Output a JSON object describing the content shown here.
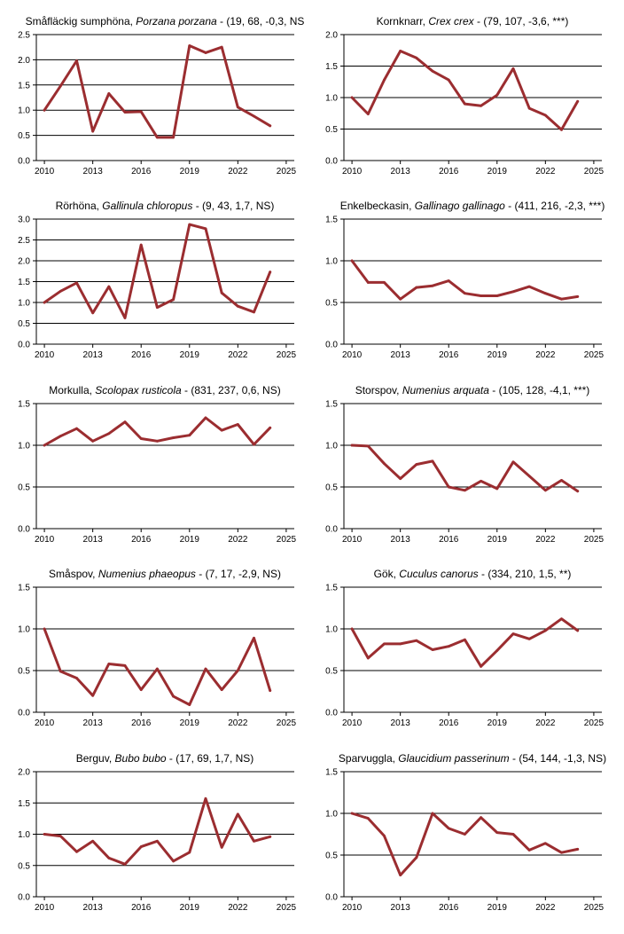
{
  "chart_data": [
    {
      "type": "line",
      "title_common": "Småfläckig sumphöna,",
      "title_latin": "Porzana porzana",
      "title_stats": " - (19, 68, -0,3, NS",
      "ylim": [
        0,
        2.5
      ],
      "yticks": [
        "0.0",
        "0.5",
        "1.0",
        "1.5",
        "2.0",
        "2.5"
      ],
      "xlim": [
        2009.5,
        2025.5
      ],
      "xticks": [
        "2010",
        "2013",
        "2016",
        "2019",
        "2022",
        "2025"
      ],
      "x": [
        2010,
        2011,
        2012,
        2013,
        2014,
        2015,
        2016,
        2017,
        2018,
        2019,
        2020,
        2021,
        2022,
        2023,
        2024
      ],
      "values": [
        1.0,
        1.48,
        1.98,
        0.58,
        1.33,
        0.96,
        0.97,
        0.46,
        0.46,
        2.28,
        2.14,
        2.25,
        1.06,
        0.88,
        0.69
      ]
    },
    {
      "type": "line",
      "title_common": "Kornknarr,",
      "title_latin": "Crex crex",
      "title_stats": " - (79, 107, -3,6, ***)",
      "ylim": [
        0,
        2.0
      ],
      "yticks": [
        "0.0",
        "0.5",
        "1.0",
        "1.5",
        "2.0"
      ],
      "xlim": [
        2009.5,
        2025.5
      ],
      "xticks": [
        "2010",
        "2013",
        "2016",
        "2019",
        "2022",
        "2025"
      ],
      "x": [
        2010,
        2011,
        2012,
        2013,
        2014,
        2015,
        2016,
        2017,
        2018,
        2019,
        2020,
        2021,
        2022,
        2023,
        2024
      ],
      "values": [
        1.0,
        0.74,
        1.28,
        1.74,
        1.63,
        1.42,
        1.28,
        0.9,
        0.87,
        1.04,
        1.46,
        0.83,
        0.72,
        0.49,
        0.94
      ]
    },
    {
      "type": "line",
      "title_common": "Rörhöna,",
      "title_latin": "Gallinula chloropus",
      "title_stats": " - (9, 43, 1,7, NS)",
      "ylim": [
        0,
        3.0
      ],
      "yticks": [
        "0.0",
        "0.5",
        "1.0",
        "1.5",
        "2.0",
        "2.5",
        "3.0"
      ],
      "xlim": [
        2009.5,
        2025.5
      ],
      "xticks": [
        "2010",
        "2013",
        "2016",
        "2019",
        "2022",
        "2025"
      ],
      "x": [
        2010,
        2011,
        2012,
        2013,
        2014,
        2015,
        2016,
        2017,
        2018,
        2019,
        2020,
        2021,
        2022,
        2023,
        2024
      ],
      "values": [
        1.0,
        1.27,
        1.47,
        0.75,
        1.38,
        0.63,
        2.38,
        0.88,
        1.07,
        2.87,
        2.77,
        1.23,
        0.91,
        0.77,
        1.73
      ]
    },
    {
      "type": "line",
      "title_common": "Enkelbeckasin,",
      "title_latin": "Gallinago gallinago",
      "title_stats": " - (411, 216, -2,3, ***)",
      "ylim": [
        0,
        1.5
      ],
      "yticks": [
        "0.0",
        "0.5",
        "1.0",
        "1.5"
      ],
      "xlim": [
        2009.5,
        2025.5
      ],
      "xticks": [
        "2010",
        "2013",
        "2016",
        "2019",
        "2022",
        "2025"
      ],
      "x": [
        2010,
        2011,
        2012,
        2013,
        2014,
        2015,
        2016,
        2017,
        2018,
        2019,
        2020,
        2021,
        2022,
        2023,
        2024
      ],
      "values": [
        1.0,
        0.74,
        0.74,
        0.54,
        0.68,
        0.7,
        0.76,
        0.61,
        0.58,
        0.58,
        0.63,
        0.69,
        0.61,
        0.54,
        0.57
      ]
    },
    {
      "type": "line",
      "title_common": "Morkulla,",
      "title_latin": "Scolopax rusticola",
      "title_stats": " - (831, 237, 0,6, NS)",
      "ylim": [
        0,
        1.5
      ],
      "yticks": [
        "0.0",
        "0.5",
        "1.0",
        "1.5"
      ],
      "xlim": [
        2009.5,
        2025.5
      ],
      "xticks": [
        "2010",
        "2013",
        "2016",
        "2019",
        "2022",
        "2025"
      ],
      "x": [
        2010,
        2011,
        2012,
        2013,
        2014,
        2015,
        2016,
        2017,
        2018,
        2019,
        2020,
        2021,
        2022,
        2023,
        2024
      ],
      "values": [
        1.0,
        1.11,
        1.2,
        1.05,
        1.14,
        1.28,
        1.08,
        1.05,
        1.09,
        1.12,
        1.33,
        1.18,
        1.25,
        1.01,
        1.21
      ]
    },
    {
      "type": "line",
      "title_common": "Storspov,",
      "title_latin": "Numenius arquata",
      "title_stats": " - (105, 128, -4,1, ***)",
      "ylim": [
        0,
        1.5
      ],
      "yticks": [
        "0.0",
        "0.5",
        "1.0",
        "1.5"
      ],
      "xlim": [
        2009.5,
        2025.5
      ],
      "xticks": [
        "2010",
        "2013",
        "2016",
        "2019",
        "2022",
        "2025"
      ],
      "x": [
        2010,
        2011,
        2012,
        2013,
        2014,
        2015,
        2016,
        2017,
        2018,
        2019,
        2020,
        2021,
        2022,
        2023,
        2024
      ],
      "values": [
        1.0,
        0.99,
        0.78,
        0.6,
        0.77,
        0.81,
        0.5,
        0.46,
        0.57,
        0.48,
        0.8,
        0.63,
        0.46,
        0.58,
        0.45
      ]
    },
    {
      "type": "line",
      "title_common": "Småspov,",
      "title_latin": "Numenius phaeopus",
      "title_stats": " - (7, 17, -2,9, NS)",
      "ylim": [
        0,
        1.5
      ],
      "yticks": [
        "0.0",
        "0.5",
        "1.0",
        "1.5"
      ],
      "xlim": [
        2009.5,
        2025.5
      ],
      "xticks": [
        "2010",
        "2013",
        "2016",
        "2019",
        "2022",
        "2025"
      ],
      "x": [
        2010,
        2011,
        2012,
        2013,
        2014,
        2015,
        2016,
        2017,
        2018,
        2019,
        2020,
        2021,
        2022,
        2023,
        2024
      ],
      "values": [
        1.0,
        0.49,
        0.41,
        0.2,
        0.58,
        0.56,
        0.27,
        0.52,
        0.19,
        0.09,
        0.52,
        0.27,
        0.5,
        0.89,
        0.26
      ]
    },
    {
      "type": "line",
      "title_common": "Gök,",
      "title_latin": "Cuculus canorus",
      "title_stats": " - (334, 210, 1,5, **)",
      "ylim": [
        0,
        1.5
      ],
      "yticks": [
        "0.0",
        "0.5",
        "1.0",
        "1.5"
      ],
      "xlim": [
        2009.5,
        2025.5
      ],
      "xticks": [
        "2010",
        "2013",
        "2016",
        "2019",
        "2022",
        "2025"
      ],
      "x": [
        2010,
        2011,
        2012,
        2013,
        2014,
        2015,
        2016,
        2017,
        2018,
        2019,
        2020,
        2021,
        2022,
        2023,
        2024
      ],
      "values": [
        1.0,
        0.65,
        0.82,
        0.82,
        0.86,
        0.75,
        0.79,
        0.87,
        0.55,
        0.74,
        0.94,
        0.88,
        0.98,
        1.12,
        0.98
      ]
    },
    {
      "type": "line",
      "title_common": "Berguv,",
      "title_latin": "Bubo bubo",
      "title_stats": " - (17, 69, 1,7, NS)",
      "ylim": [
        0,
        2.0
      ],
      "yticks": [
        "0.0",
        "0.5",
        "1.0",
        "1.5",
        "2.0"
      ],
      "xlim": [
        2009.5,
        2025.5
      ],
      "xticks": [
        "2010",
        "2013",
        "2016",
        "2019",
        "2022",
        "2025"
      ],
      "x": [
        2010,
        2011,
        2012,
        2013,
        2014,
        2015,
        2016,
        2017,
        2018,
        2019,
        2020,
        2021,
        2022,
        2023,
        2024
      ],
      "values": [
        1.0,
        0.97,
        0.72,
        0.89,
        0.62,
        0.52,
        0.8,
        0.89,
        0.57,
        0.71,
        1.57,
        0.79,
        1.32,
        0.89,
        0.96
      ]
    },
    {
      "type": "line",
      "title_common": "Sparvuggla,",
      "title_latin": "Glaucidium passerinum",
      "title_stats": " - (54, 144, -1,3, NS)",
      "ylim": [
        0,
        1.5
      ],
      "yticks": [
        "0.0",
        "0.5",
        "1.0",
        "1.5"
      ],
      "xlim": [
        2009.5,
        2025.5
      ],
      "xticks": [
        "2010",
        "2013",
        "2016",
        "2019",
        "2022",
        "2025"
      ],
      "x": [
        2010,
        2011,
        2012,
        2013,
        2014,
        2015,
        2016,
        2017,
        2018,
        2019,
        2020,
        2021,
        2022,
        2023,
        2024
      ],
      "values": [
        1.0,
        0.94,
        0.73,
        0.26,
        0.47,
        1.0,
        0.82,
        0.75,
        0.95,
        0.77,
        0.75,
        0.56,
        0.64,
        0.53,
        0.57
      ]
    }
  ],
  "colors": {
    "series": "#9b2d30"
  }
}
